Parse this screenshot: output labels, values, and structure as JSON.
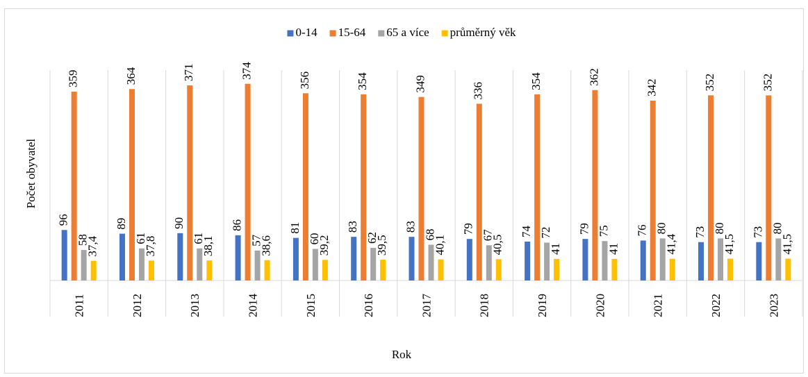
{
  "chart_data": {
    "type": "bar",
    "x_label": "Rok",
    "y_label": "Počet obyvatel",
    "categories": [
      "2011",
      "2012",
      "2013",
      "2014",
      "2015",
      "2016",
      "2017",
      "2018",
      "2019",
      "2020",
      "2021",
      "2022",
      "2023"
    ],
    "series": [
      {
        "name": "0-14",
        "color": "#4472c4",
        "values": [
          96,
          89,
          90,
          86,
          81,
          83,
          83,
          79,
          74,
          79,
          76,
          73,
          73
        ]
      },
      {
        "name": "15-64",
        "color": "#ed7d31",
        "values": [
          359,
          364,
          371,
          374,
          356,
          354,
          349,
          336,
          354,
          362,
          342,
          352,
          352
        ]
      },
      {
        "name": "65 a více",
        "color": "#a5a5a5",
        "values": [
          58,
          61,
          61,
          57,
          60,
          62,
          68,
          67,
          72,
          75,
          80,
          80,
          80
        ]
      },
      {
        "name": "průměrný věk",
        "color": "#ffc000",
        "values": [
          37.4,
          37.8,
          38.1,
          38.6,
          39.2,
          39.5,
          40.1,
          40.5,
          41,
          41,
          41.4,
          41.5,
          41.5
        ],
        "value_labels": [
          "37,4",
          "37,8",
          "38,1",
          "38,6",
          "39,2",
          "39,5",
          "40,1",
          "40,5",
          "41",
          "41",
          "41,4",
          "41,5",
          "41,5"
        ]
      }
    ],
    "ylim": [
      0,
      400
    ],
    "legend": "top"
  }
}
